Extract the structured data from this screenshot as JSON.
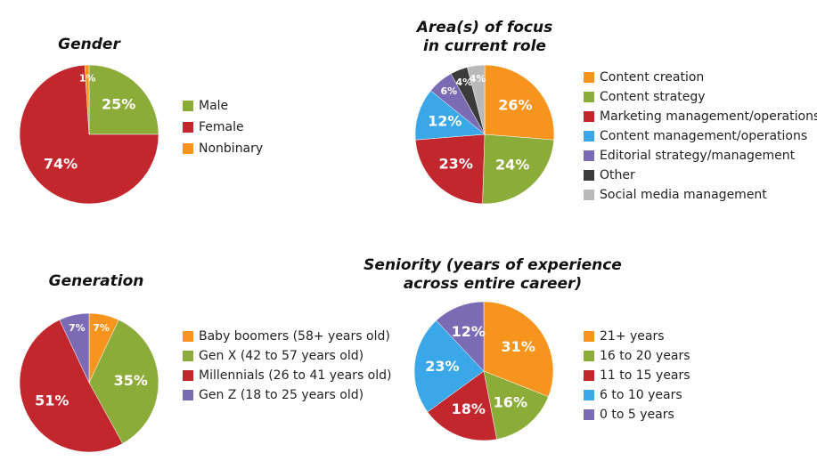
{
  "chart_data": [
    {
      "type": "pie",
      "title": [
        "Gender"
      ],
      "categories": [
        "Male",
        "Female",
        "Nonbinary"
      ],
      "values": [
        25,
        74,
        1
      ],
      "value_labels": [
        "25%",
        "74%",
        "1%"
      ],
      "colors": [
        "#8cac3a",
        "#c1272d",
        "#f7941d"
      ]
    },
    {
      "type": "pie",
      "title": [
        "Area(s) of focus",
        "in current role"
      ],
      "categories": [
        "Content creation",
        "Content strategy",
        "Marketing management/operations",
        "Content management/operations",
        "Editorial strategy/management",
        "Other",
        "Social media management"
      ],
      "values": [
        26,
        24,
        23,
        12,
        6,
        4,
        4
      ],
      "value_labels": [
        "26%",
        "24%",
        "23%",
        "12%",
        "6%",
        "4%",
        "4%"
      ],
      "colors": [
        "#f7941d",
        "#8cac3a",
        "#c1272d",
        "#3aa8e8",
        "#7b6bb5",
        "#3b3b3b",
        "#b9b9b9"
      ]
    },
    {
      "type": "pie",
      "title": [
        "Generation"
      ],
      "categories": [
        "Baby boomers (58+ years old)",
        "Gen X (42 to 57 years old)",
        "Millennials (26 to 41 years old)",
        "Gen Z (18 to 25 years old)"
      ],
      "values": [
        7,
        35,
        51,
        7
      ],
      "value_labels": [
        "7%",
        "35%",
        "51%",
        "7%"
      ],
      "colors": [
        "#f7941d",
        "#8cac3a",
        "#c1272d",
        "#7b6bb5"
      ]
    },
    {
      "type": "pie",
      "title": [
        "Seniority (years of experience",
        "across entire career)"
      ],
      "categories": [
        "21+ years",
        "16 to 20 years",
        "11 to 15 years",
        "6 to 10 years",
        "0 to 5 years"
      ],
      "values": [
        31,
        16,
        18,
        23,
        12
      ],
      "value_labels": [
        "31%",
        "16%",
        "18%",
        "23%",
        "12%"
      ],
      "colors": [
        "#f7941d",
        "#8cac3a",
        "#c1272d",
        "#3aa8e8",
        "#7b6bb5"
      ]
    }
  ]
}
